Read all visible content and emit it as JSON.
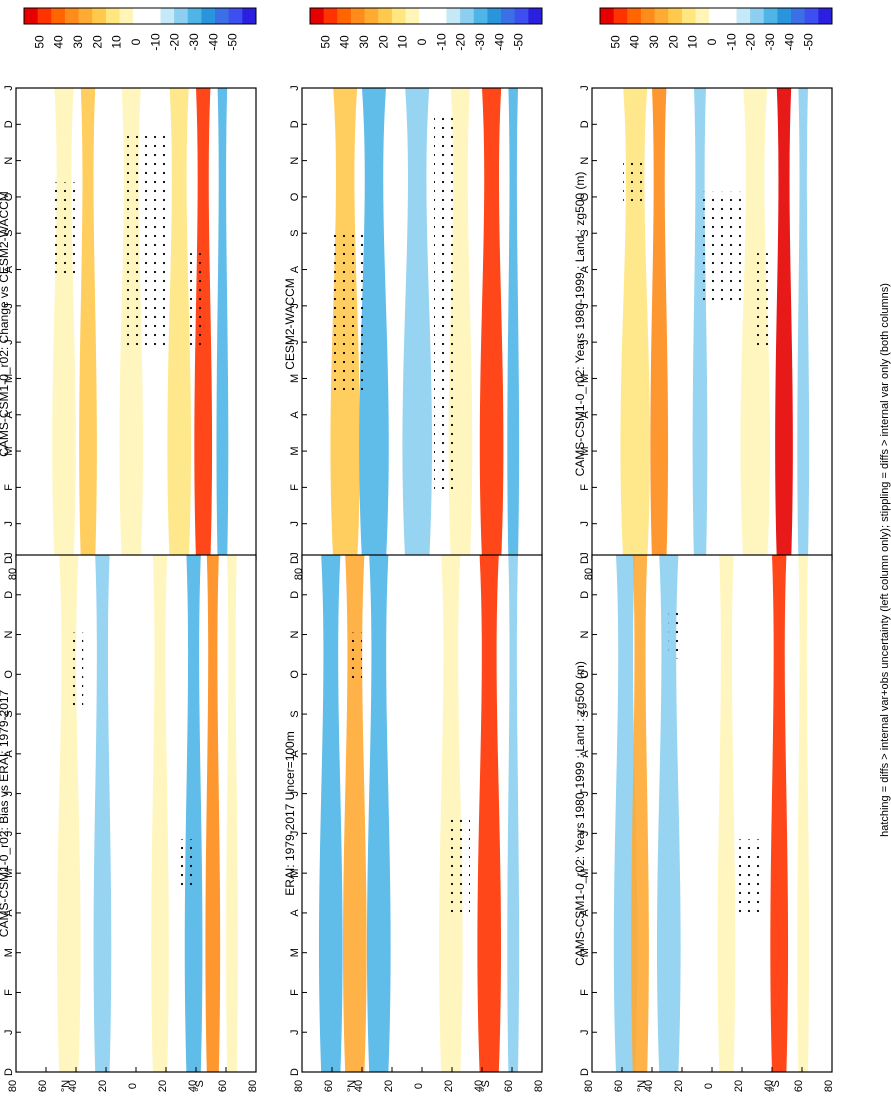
{
  "figure": {
    "footnote": "hatching = diffs > internal var+obs uncertainty (left column only); stippling = diffs > internal var only (both columns)"
  },
  "colorbar": {
    "ticks": [
      "50",
      "40",
      "30",
      "20",
      "10",
      "0",
      "-10",
      "-20",
      "-30",
      "-40",
      "-50"
    ],
    "colors": [
      "#e60000",
      "#ff3300",
      "#ff6600",
      "#ff8c1a",
      "#ffaa33",
      "#ffc94d",
      "#ffe680",
      "#fff5b8",
      "#ffffff",
      "#ffffff",
      "#c6e9f7",
      "#8ccff0",
      "#4fb5e6",
      "#2a95dc",
      "#3a6fe6",
      "#3d4ff0",
      "#2b1fe0"
    ]
  },
  "panel_axes": {
    "months": [
      "D",
      "J",
      "F",
      "M",
      "A",
      "M",
      "J",
      "J",
      "A",
      "S",
      "O",
      "N",
      "D",
      "J"
    ],
    "lat_ticks": [
      "80",
      "60",
      "40",
      "20",
      "0",
      "20",
      "40",
      "60",
      "80"
    ],
    "nh_unit": "°N",
    "sh_unit": "°S"
  },
  "chart_data": [
    {
      "type": "heatmap",
      "panel": "top-right",
      "title": "CAMS-CSM1-0_r02: Years 1980-1999 : Land : zg500 (m)",
      "x": [
        "D",
        "J",
        "F",
        "M",
        "A",
        "M",
        "J",
        "J",
        "A",
        "S",
        "O",
        "N",
        "D",
        "J"
      ],
      "y": [
        "80N",
        "60N",
        "40N",
        "20N",
        "0",
        "20S",
        "40S",
        "60S",
        "80S"
      ],
      "zlim": [
        -50,
        50
      ]
    },
    {
      "type": "heatmap",
      "panel": "middle-right",
      "title": "CESM2-WACCM",
      "x": [
        "D",
        "J",
        "F",
        "M",
        "A",
        "M",
        "J",
        "J",
        "A",
        "S",
        "O",
        "N",
        "D",
        "J"
      ],
      "y": [
        "80N",
        "60N",
        "40N",
        "20N",
        "0",
        "20S",
        "40S",
        "60S",
        "80S"
      ],
      "zlim": [
        -50,
        50
      ]
    },
    {
      "type": "heatmap",
      "panel": "bottom-right",
      "title": "CAMS-CSM1-0_r02: Change vs CESM2-WACCM",
      "x": [
        "D",
        "J",
        "F",
        "M",
        "A",
        "M",
        "J",
        "J",
        "A",
        "S",
        "O",
        "N",
        "D",
        "J"
      ],
      "y": [
        "80N",
        "60N",
        "40N",
        "20N",
        "0",
        "20S",
        "40S",
        "60S",
        "80S"
      ],
      "zlim": [
        -50,
        50
      ]
    },
    {
      "type": "heatmap",
      "panel": "top-left",
      "title": "CAMS-CSM1-0_r02: Years 1980-1999 : Land : zg500 (m)",
      "x": [
        "D",
        "J",
        "F",
        "M",
        "A",
        "M",
        "J",
        "J",
        "A",
        "S",
        "O",
        "N",
        "D",
        "J"
      ],
      "y": [
        "80N",
        "60N",
        "40N",
        "20N",
        "0",
        "20S",
        "40S",
        "60S",
        "80S"
      ],
      "zlim": [
        -50,
        50
      ]
    },
    {
      "type": "heatmap",
      "panel": "middle-left",
      "title": "ERAI: 1979-2017 Uncer=100m",
      "x": [
        "D",
        "J",
        "F",
        "M",
        "A",
        "M",
        "J",
        "J",
        "A",
        "S",
        "O",
        "N",
        "D",
        "J"
      ],
      "y": [
        "80N",
        "60N",
        "40N",
        "20N",
        "0",
        "20S",
        "40S",
        "60S",
        "80S"
      ],
      "zlim": [
        -50,
        50
      ]
    },
    {
      "type": "heatmap",
      "panel": "bottom-left",
      "title": "CAMS-CSM1-0_r02: Bias vs ERAI: 1979-2017",
      "x": [
        "D",
        "J",
        "F",
        "M",
        "A",
        "M",
        "J",
        "J",
        "A",
        "S",
        "O",
        "N",
        "D",
        "J"
      ],
      "y": [
        "80N",
        "60N",
        "40N",
        "20N",
        "0",
        "20S",
        "40S",
        "60S",
        "80S"
      ],
      "zlim": [
        -50,
        50
      ]
    }
  ]
}
